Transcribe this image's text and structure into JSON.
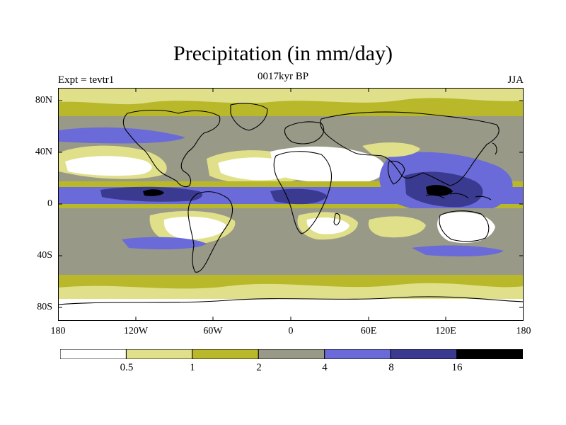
{
  "title": "Precipitation (in mm/day)",
  "subtitle": "0017kyr BP",
  "left_label": "Expt = tevtr1",
  "right_label": "JJA",
  "map": {
    "lat_labels": [
      "80N",
      "40N",
      "0",
      "40S",
      "80S"
    ],
    "lon_labels": [
      "180",
      "120W",
      "60W",
      "0",
      "60E",
      "120E",
      "180"
    ]
  },
  "colorbar": {
    "colors": [
      "#ffffff",
      "#e0e08a",
      "#b8b82a",
      "#999988",
      "#6a6ad8",
      "#3a3a90",
      "#000000"
    ],
    "labels": [
      "0.5",
      "1",
      "2",
      "4",
      "8",
      "16"
    ],
    "units": "mm/day"
  }
}
